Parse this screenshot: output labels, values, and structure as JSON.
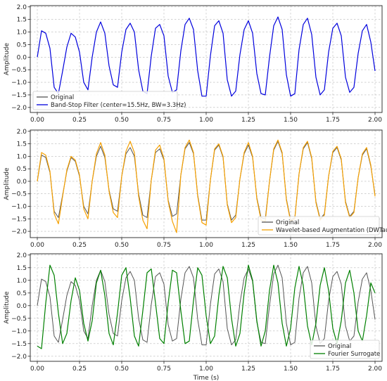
{
  "chart_data": [
    {
      "type": "line",
      "title": "",
      "xlabel": "",
      "ylabel": "Amplitude",
      "xlim": [
        0.0,
        2.0
      ],
      "ylim": [
        -2.2,
        2.05
      ],
      "xticks": [
        0.0,
        0.25,
        0.5,
        0.75,
        1.0,
        1.25,
        1.5,
        1.75,
        2.0
      ],
      "xtick_labels": [
        "0.00",
        "0.25",
        "0.50",
        "0.75",
        "1.00",
        "1.25",
        "1.50",
        "1.75",
        "2.00"
      ],
      "yticks": [
        2.0,
        1.5,
        1.0,
        0.5,
        0.0,
        -0.5,
        -1.0,
        -1.5,
        -2.0
      ],
      "ytick_labels": [
        "2.0",
        "1.5",
        "1.0",
        "0.5",
        "0.0",
        "−0.5",
        "−1.0",
        "−1.5",
        "−2.0"
      ],
      "grid": true,
      "legend_position": "lower-left",
      "series": [
        {
          "name": "Original",
          "color": "#555555",
          "visible": false,
          "y": [
            0.0,
            1.05,
            0.95,
            0.35,
            -1.2,
            -1.45,
            -0.55,
            0.4,
            0.95,
            0.8,
            0.2,
            -1.0,
            -1.3,
            0.0,
            1.0,
            1.4,
            0.95,
            -0.35,
            -1.1,
            -1.2,
            0.2,
            1.1,
            1.35,
            1.0,
            -0.5,
            -1.35,
            -1.45,
            0.05,
            1.15,
            1.3,
            0.85,
            -0.75,
            -1.4,
            -1.3,
            0.25,
            1.3,
            1.55,
            1.1,
            -0.55,
            -1.55,
            -1.55,
            0.05,
            1.25,
            1.45,
            0.95,
            -0.9,
            -1.55,
            -1.35,
            0.1,
            1.1,
            1.45,
            0.95,
            -0.65,
            -1.45,
            -1.5,
            0.0,
            1.25,
            1.6,
            1.1,
            -0.7,
            -1.55,
            -1.45,
            0.3,
            1.3,
            1.55,
            0.9,
            -0.8,
            -1.5,
            -1.3,
            0.2,
            1.15,
            1.35,
            0.85,
            -0.8,
            -1.4,
            -1.2,
            0.15,
            1.05,
            1.3,
            0.6,
            -0.55
          ]
        },
        {
          "name": "Band-Stop Filter (center=15.5Hz, BW=3.3Hz)",
          "color": "#0000dd",
          "y": [
            0.0,
            1.05,
            0.95,
            0.35,
            -1.2,
            -1.45,
            -0.55,
            0.4,
            0.95,
            0.8,
            0.2,
            -1.0,
            -1.3,
            0.0,
            1.0,
            1.4,
            0.95,
            -0.35,
            -1.1,
            -1.2,
            0.2,
            1.1,
            1.35,
            1.0,
            -0.5,
            -1.35,
            -1.45,
            0.05,
            1.15,
            1.3,
            0.85,
            -0.75,
            -1.4,
            -1.3,
            0.25,
            1.3,
            1.55,
            1.1,
            -0.55,
            -1.55,
            -1.55,
            0.05,
            1.25,
            1.45,
            0.95,
            -0.9,
            -1.55,
            -1.35,
            0.1,
            1.1,
            1.45,
            0.95,
            -0.65,
            -1.45,
            -1.5,
            0.0,
            1.25,
            1.6,
            1.1,
            -0.7,
            -1.55,
            -1.45,
            0.3,
            1.3,
            1.55,
            0.9,
            -0.8,
            -1.5,
            -1.3,
            0.2,
            1.15,
            1.35,
            0.85,
            -0.8,
            -1.4,
            -1.2,
            0.15,
            1.05,
            1.3,
            0.6,
            -0.55
          ]
        }
      ]
    },
    {
      "type": "line",
      "title": "",
      "xlabel": "",
      "ylabel": "Amplitude",
      "xlim": [
        0.0,
        2.0
      ],
      "ylim": [
        -2.25,
        2.05
      ],
      "xticks": [
        0.0,
        0.25,
        0.5,
        0.75,
        1.0,
        1.25,
        1.5,
        1.75,
        2.0
      ],
      "xtick_labels": [
        "0.00",
        "0.25",
        "0.50",
        "0.75",
        "1.00",
        "1.25",
        "1.50",
        "1.75",
        "2.00"
      ],
      "yticks": [
        2.0,
        1.5,
        1.0,
        0.5,
        0.0,
        -0.5,
        -1.0,
        -1.5,
        -2.0
      ],
      "ytick_labels": [
        "2.0",
        "1.5",
        "1.0",
        "0.5",
        "0.0",
        "−0.5",
        "−1.0",
        "−1.5",
        "−2.0"
      ],
      "grid": true,
      "legend_position": "lower-right",
      "series": [
        {
          "name": "Original",
          "color": "#555555",
          "y": [
            0.0,
            1.05,
            0.95,
            0.35,
            -1.2,
            -1.45,
            -0.55,
            0.4,
            0.95,
            0.8,
            0.2,
            -1.0,
            -1.3,
            0.0,
            1.0,
            1.4,
            0.95,
            -0.35,
            -1.1,
            -1.2,
            0.2,
            1.1,
            1.35,
            1.0,
            -0.5,
            -1.35,
            -1.45,
            0.05,
            1.15,
            1.3,
            0.85,
            -0.75,
            -1.4,
            -1.3,
            0.25,
            1.3,
            1.55,
            1.1,
            -0.55,
            -1.55,
            -1.55,
            0.05,
            1.25,
            1.45,
            0.95,
            -0.9,
            -1.55,
            -1.35,
            0.1,
            1.1,
            1.45,
            0.95,
            -0.65,
            -1.45,
            -1.5,
            0.0,
            1.25,
            1.6,
            1.1,
            -0.7,
            -1.55,
            -1.45,
            0.3,
            1.3,
            1.55,
            0.9,
            -0.8,
            -1.5,
            -1.3,
            0.2,
            1.15,
            1.35,
            0.85,
            -0.8,
            -1.4,
            -1.2,
            0.15,
            1.05,
            1.3,
            0.6,
            -0.55
          ]
        },
        {
          "name": "Wavelet-based Augmentation (DWTaug)",
          "color": "#f5a000",
          "y": [
            0.0,
            1.15,
            1.05,
            0.4,
            -1.3,
            -1.7,
            -0.6,
            0.45,
            1.0,
            0.85,
            0.25,
            -1.1,
            -1.5,
            0.0,
            1.1,
            1.55,
            1.05,
            -0.4,
            -1.25,
            -1.45,
            0.2,
            1.2,
            1.6,
            1.15,
            -0.6,
            -1.55,
            -1.9,
            0.05,
            1.25,
            1.45,
            0.9,
            -0.8,
            -1.6,
            -2.05,
            0.25,
            1.35,
            1.65,
            1.15,
            -0.6,
            -1.65,
            -1.75,
            0.05,
            1.3,
            1.5,
            1.0,
            -0.95,
            -1.65,
            -1.45,
            0.1,
            1.15,
            1.55,
            1.0,
            -0.7,
            -1.55,
            -1.6,
            0.0,
            1.3,
            1.65,
            1.15,
            -0.75,
            -1.6,
            -1.5,
            0.3,
            1.35,
            1.6,
            0.95,
            -0.85,
            -1.55,
            -1.35,
            0.2,
            1.2,
            1.4,
            0.9,
            -0.85,
            -1.45,
            -1.25,
            0.15,
            1.1,
            1.35,
            0.65,
            -0.6
          ]
        }
      ]
    },
    {
      "type": "line",
      "title": "",
      "xlabel": "Time (s)",
      "ylabel": "Amplitude",
      "xlim": [
        0.0,
        2.0
      ],
      "ylim": [
        -2.2,
        2.05
      ],
      "xticks": [
        0.0,
        0.25,
        0.5,
        0.75,
        1.0,
        1.25,
        1.5,
        1.75,
        2.0
      ],
      "xtick_labels": [
        "0.00",
        "0.25",
        "0.50",
        "0.75",
        "1.00",
        "1.25",
        "1.50",
        "1.75",
        "2.00"
      ],
      "yticks": [
        2.0,
        1.5,
        1.0,
        0.5,
        0.0,
        -0.5,
        -1.0,
        -1.5,
        -2.0
      ],
      "ytick_labels": [
        "2.0",
        "1.5",
        "1.0",
        "0.5",
        "0.0",
        "−0.5",
        "−1.0",
        "−1.5",
        "−2.0"
      ],
      "grid": true,
      "legend_position": "lower-right",
      "series": [
        {
          "name": "Original",
          "color": "#555555",
          "y": [
            0.0,
            1.05,
            0.95,
            0.35,
            -1.2,
            -1.45,
            -0.55,
            0.4,
            0.95,
            0.8,
            0.2,
            -1.0,
            -1.3,
            0.0,
            1.0,
            1.4,
            0.95,
            -0.35,
            -1.1,
            -1.2,
            0.2,
            1.1,
            1.35,
            1.0,
            -0.5,
            -1.35,
            -1.45,
            0.05,
            1.15,
            1.3,
            0.85,
            -0.75,
            -1.4,
            -1.3,
            0.25,
            1.3,
            1.55,
            1.1,
            -0.55,
            -1.55,
            -1.55,
            0.05,
            1.25,
            1.45,
            0.95,
            -0.9,
            -1.55,
            -1.35,
            0.1,
            1.1,
            1.45,
            0.95,
            -0.65,
            -1.45,
            -1.5,
            0.0,
            1.25,
            1.6,
            1.1,
            -0.7,
            -1.55,
            -1.45,
            0.3,
            1.3,
            1.55,
            0.9,
            -0.8,
            -1.5,
            -1.3,
            0.2,
            1.15,
            1.35,
            0.85,
            -0.8,
            -1.4,
            -1.2,
            0.15,
            1.05,
            1.3,
            0.6,
            -0.55
          ]
        },
        {
          "name": "Fourier Surrogate",
          "color": "#008000",
          "y": [
            -1.6,
            -1.7,
            0.1,
            1.6,
            1.2,
            -0.3,
            -1.5,
            -1.1,
            0.2,
            1.1,
            0.6,
            -0.7,
            -1.4,
            -0.6,
            0.9,
            1.4,
            0.4,
            -1.1,
            -1.55,
            -0.3,
            1.2,
            1.5,
            0.3,
            -1.2,
            -1.6,
            -0.2,
            1.3,
            1.45,
            0.1,
            -1.3,
            -1.5,
            0.1,
            1.4,
            1.3,
            -0.2,
            -1.5,
            -1.4,
            0.2,
            1.5,
            1.2,
            -0.4,
            -1.5,
            -1.2,
            0.4,
            1.55,
            1.1,
            -0.5,
            -1.6,
            -1.1,
            0.5,
            1.6,
            1.0,
            -0.6,
            -1.6,
            -1.0,
            0.6,
            1.6,
            0.9,
            -0.7,
            -1.6,
            -0.9,
            0.7,
            1.55,
            0.8,
            -0.8,
            -1.55,
            -0.7,
            0.8,
            1.5,
            0.6,
            -0.9,
            -1.5,
            -0.6,
            0.9,
            1.4,
            0.5,
            -1.0,
            -1.4,
            -0.4,
            0.9,
            0.5
          ]
        }
      ]
    }
  ]
}
